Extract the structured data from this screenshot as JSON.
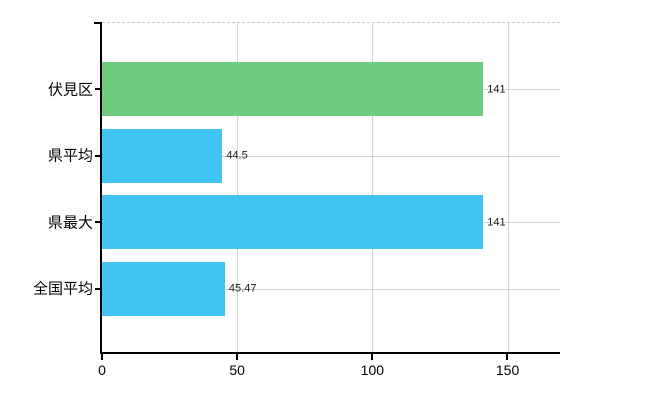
{
  "chart_data": {
    "type": "bar",
    "orientation": "horizontal",
    "title": "",
    "xlabel": "",
    "ylabel": "",
    "categories": [
      "伏見区",
      "県平均",
      "県最大",
      "全国平均"
    ],
    "values": [
      141,
      44.5,
      141,
      45.47
    ],
    "value_labels": [
      "141",
      "44.5",
      "141",
      "45.47"
    ],
    "bar_colors": [
      "#6ECC80",
      "#41C4F2",
      "#41C4F2",
      "#41C4F2"
    ],
    "xlim": [
      0,
      169.4
    ],
    "x_ticks": [
      0,
      50,
      100,
      150
    ],
    "x_tick_labels": [
      "0",
      "50",
      "100",
      "150"
    ],
    "grid": true,
    "legend": false,
    "gridline_color": "#D4D4D4",
    "axis_color": "#000000",
    "background_color": "#FFFFFF",
    "plot_top_border_style": "dashed",
    "plot_top_border_color": "#C9C9C9",
    "category_label_color": "#000000",
    "value_label_color": "#1A1A1A",
    "tick_label_color": "#000000"
  }
}
